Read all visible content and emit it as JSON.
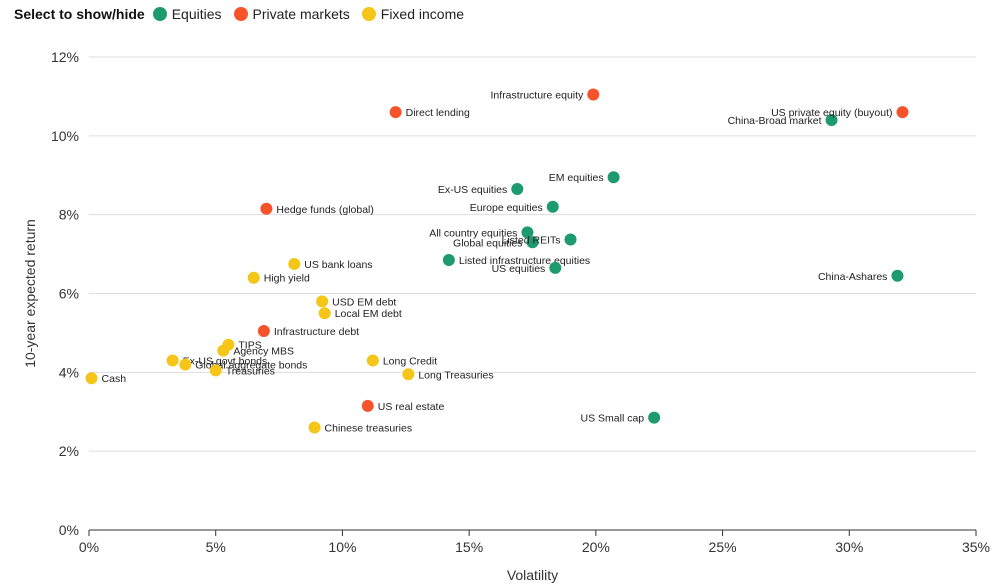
{
  "legend": {
    "title": "Select to show/hide",
    "items": [
      {
        "label": "Equities",
        "color": "#1e9b6e"
      },
      {
        "label": "Private markets",
        "color": "#f5542a"
      },
      {
        "label": "Fixed income",
        "color": "#f5c518"
      }
    ]
  },
  "chart_data": {
    "type": "scatter",
    "title": "",
    "xlabel": "Volatility",
    "ylabel": "10-year expected return",
    "xlim": [
      0,
      35
    ],
    "ylim": [
      0,
      12
    ],
    "x_ticks": [
      0,
      5,
      10,
      15,
      20,
      25,
      30,
      35
    ],
    "x_tick_labels": [
      "0%",
      "5%",
      "10%",
      "15%",
      "20%",
      "25%",
      "30%",
      "35%"
    ],
    "y_ticks": [
      0,
      2,
      4,
      6,
      8,
      10,
      12
    ],
    "y_tick_labels": [
      "0%",
      "2%",
      "4%",
      "6%",
      "8%",
      "10%",
      "12%"
    ],
    "grid": "horizontal",
    "legend_position": "top-left",
    "series": [
      {
        "name": "Equities",
        "color": "#1e9b6e",
        "points": [
          {
            "label": "China-Broad market",
            "x": 29.3,
            "y": 10.4,
            "label_side": "left"
          },
          {
            "label": "EM equities",
            "x": 20.7,
            "y": 8.95,
            "label_side": "left"
          },
          {
            "label": "Ex-US equities",
            "x": 16.9,
            "y": 8.65,
            "label_side": "left"
          },
          {
            "label": "Europe equities",
            "x": 18.3,
            "y": 8.2,
            "label_side": "left"
          },
          {
            "label": "All country equities",
            "x": 17.3,
            "y": 7.55,
            "label_side": "left"
          },
          {
            "label": "Global equities",
            "x": 17.5,
            "y": 7.3,
            "label_side": "left"
          },
          {
            "label": "Listed REITs",
            "x": 19.0,
            "y": 7.37,
            "label_side": "left"
          },
          {
            "label": "Listed infrastructure equities",
            "x": 14.2,
            "y": 6.85,
            "label_side": "right"
          },
          {
            "label": "US equities",
            "x": 18.4,
            "y": 6.65,
            "label_side": "left"
          },
          {
            "label": "China-Ashares",
            "x": 31.9,
            "y": 6.45,
            "label_side": "left"
          },
          {
            "label": "US Small cap",
            "x": 22.3,
            "y": 2.85,
            "label_side": "left"
          }
        ]
      },
      {
        "name": "Private markets",
        "color": "#f5542a",
        "points": [
          {
            "label": "Infrastructure equity",
            "x": 19.9,
            "y": 11.05,
            "label_side": "left"
          },
          {
            "label": "Direct lending",
            "x": 12.1,
            "y": 10.6,
            "label_side": "right"
          },
          {
            "label": "US private equity (buyout)",
            "x": 32.1,
            "y": 10.6,
            "label_side": "left"
          },
          {
            "label": "Hedge funds (global)",
            "x": 7.0,
            "y": 8.15,
            "label_side": "right"
          },
          {
            "label": "Infrastructure debt",
            "x": 6.9,
            "y": 5.05,
            "label_side": "right"
          },
          {
            "label": "US real estate",
            "x": 11.0,
            "y": 3.15,
            "label_side": "right"
          }
        ]
      },
      {
        "name": "Fixed income",
        "color": "#f5c518",
        "points": [
          {
            "label": "US bank loans",
            "x": 8.1,
            "y": 6.75,
            "label_side": "right"
          },
          {
            "label": "High yield",
            "x": 6.5,
            "y": 6.4,
            "label_side": "right"
          },
          {
            "label": "USD EM debt",
            "x": 9.2,
            "y": 5.8,
            "label_side": "right"
          },
          {
            "label": "Local EM debt",
            "x": 9.3,
            "y": 5.5,
            "label_side": "right"
          },
          {
            "label": "TIPS",
            "x": 5.5,
            "y": 4.7,
            "label_side": "right"
          },
          {
            "label": "Agency MBS",
            "x": 5.3,
            "y": 4.55,
            "label_side": "right"
          },
          {
            "label": "Ex-US govt bonds",
            "x": 3.3,
            "y": 4.3,
            "label_side": "right"
          },
          {
            "label": "Global aggregate bonds",
            "x": 3.8,
            "y": 4.2,
            "label_side": "right"
          },
          {
            "label": "Treasuries",
            "x": 5.0,
            "y": 4.05,
            "label_side": "right"
          },
          {
            "label": "Long Credit",
            "x": 11.2,
            "y": 4.3,
            "label_side": "right"
          },
          {
            "label": "Long Treasuries",
            "x": 12.6,
            "y": 3.95,
            "label_side": "right"
          },
          {
            "label": "Chinese treasuries",
            "x": 8.9,
            "y": 2.6,
            "label_side": "right"
          },
          {
            "label": "Cash",
            "x": 0.1,
            "y": 3.85,
            "label_side": "right"
          }
        ]
      }
    ]
  }
}
